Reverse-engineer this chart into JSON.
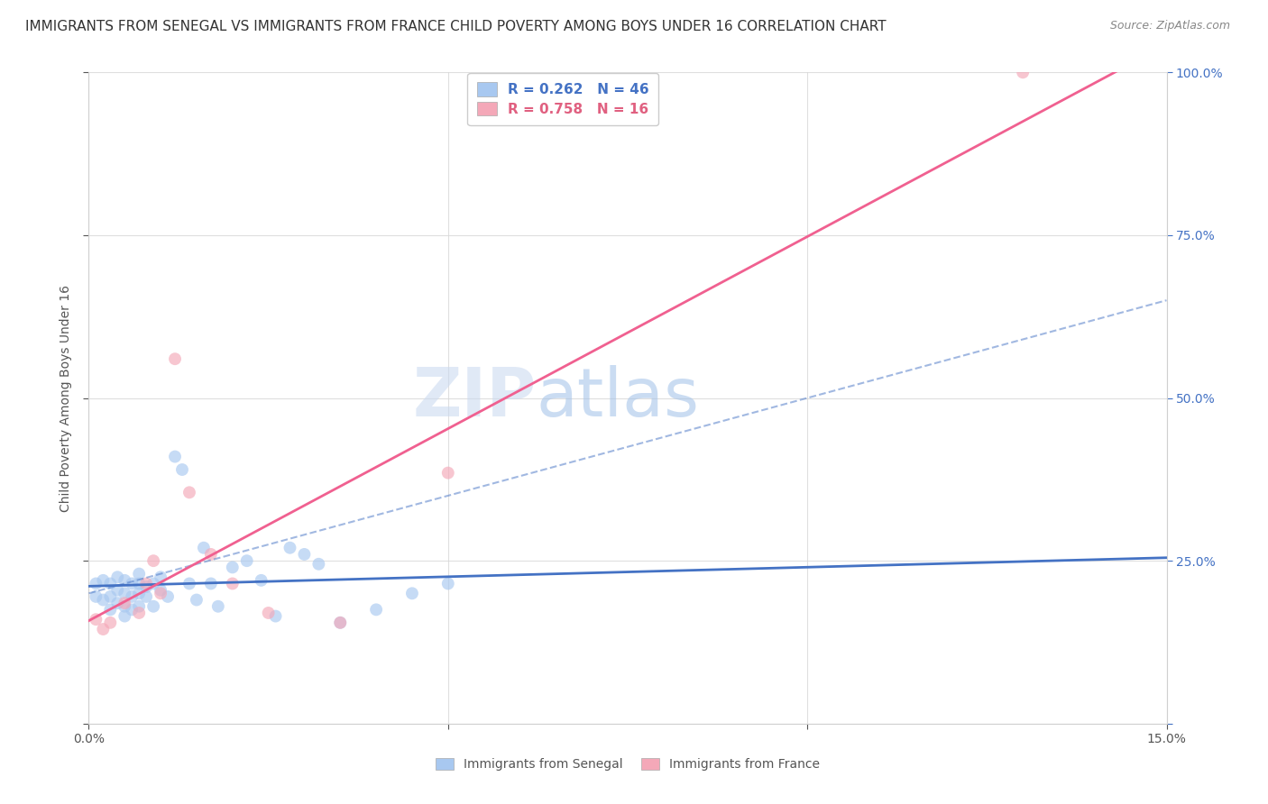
{
  "title": "IMMIGRANTS FROM SENEGAL VS IMMIGRANTS FROM FRANCE CHILD POVERTY AMONG BOYS UNDER 16 CORRELATION CHART",
  "source": "Source: ZipAtlas.com",
  "ylabel": "Child Poverty Among Boys Under 16",
  "watermark_line1": "ZIP",
  "watermark_line2": "atlas",
  "xlim": [
    0.0,
    0.15
  ],
  "ylim": [
    0.0,
    1.0
  ],
  "x_ticks": [
    0.0,
    0.05,
    0.1,
    0.15
  ],
  "y_ticks": [
    0.0,
    0.25,
    0.5,
    0.75,
    1.0
  ],
  "legend1_label": "Immigrants from Senegal",
  "legend2_label": "Immigrants from France",
  "R_senegal": 0.262,
  "N_senegal": 46,
  "R_france": 0.758,
  "N_france": 16,
  "color_senegal": "#A8C8F0",
  "color_france": "#F4A8B8",
  "color_senegal_line": "#4472C4",
  "color_france_line": "#F06090",
  "color_right_axis": "#4472C4",
  "senegal_x": [
    0.001,
    0.001,
    0.002,
    0.002,
    0.003,
    0.003,
    0.003,
    0.004,
    0.004,
    0.004,
    0.005,
    0.005,
    0.005,
    0.005,
    0.006,
    0.006,
    0.006,
    0.007,
    0.007,
    0.007,
    0.007,
    0.008,
    0.008,
    0.009,
    0.009,
    0.01,
    0.01,
    0.011,
    0.012,
    0.013,
    0.014,
    0.015,
    0.016,
    0.017,
    0.018,
    0.02,
    0.022,
    0.024,
    0.026,
    0.028,
    0.03,
    0.032,
    0.035,
    0.04,
    0.045,
    0.05
  ],
  "senegal_y": [
    0.195,
    0.215,
    0.19,
    0.22,
    0.175,
    0.195,
    0.215,
    0.185,
    0.205,
    0.225,
    0.165,
    0.18,
    0.2,
    0.22,
    0.175,
    0.195,
    0.215,
    0.18,
    0.2,
    0.215,
    0.23,
    0.195,
    0.21,
    0.18,
    0.215,
    0.205,
    0.225,
    0.195,
    0.41,
    0.39,
    0.215,
    0.19,
    0.27,
    0.215,
    0.18,
    0.24,
    0.25,
    0.22,
    0.165,
    0.27,
    0.26,
    0.245,
    0.155,
    0.175,
    0.2,
    0.215
  ],
  "france_x": [
    0.001,
    0.002,
    0.003,
    0.005,
    0.007,
    0.008,
    0.009,
    0.01,
    0.012,
    0.014,
    0.017,
    0.02,
    0.025,
    0.035,
    0.05,
    0.13
  ],
  "france_y": [
    0.16,
    0.145,
    0.155,
    0.185,
    0.17,
    0.215,
    0.25,
    0.2,
    0.56,
    0.355,
    0.26,
    0.215,
    0.17,
    0.155,
    0.385,
    1.0
  ],
  "title_fontsize": 11,
  "axis_label_fontsize": 10,
  "tick_fontsize": 10,
  "legend_fontsize": 11,
  "watermark_fontsize": 54,
  "scatter_size": 100,
  "scatter_alpha": 0.65,
  "senegal_line_intercept": 0.195,
  "senegal_line_slope": 0.9,
  "france_line_intercept": 0.0,
  "france_line_slope": 7.69,
  "dashed_line_intercept": 0.2,
  "dashed_line_slope": 3.0
}
